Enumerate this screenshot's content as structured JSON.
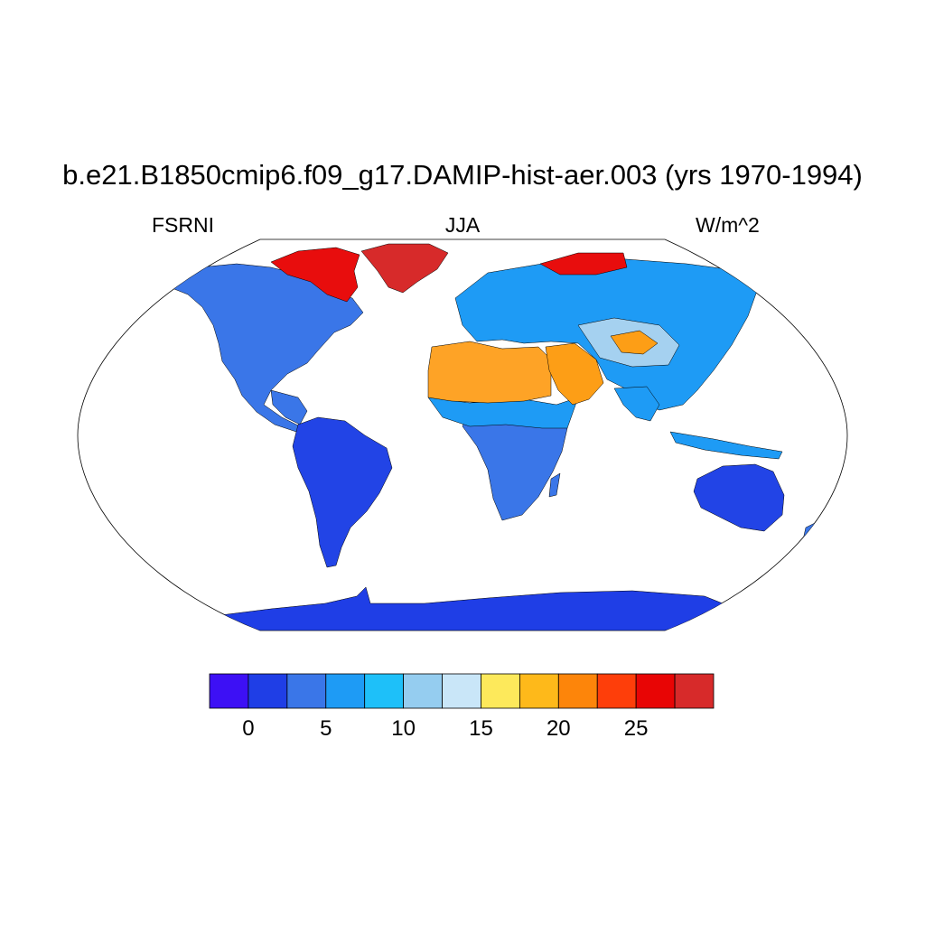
{
  "title": "b.e21.B1850cmip6.f09_g17.DAMIP-hist-aer.003 (yrs 1970-1994)",
  "variable": "FSRNI",
  "season": "JJA",
  "units": "W/m^2",
  "map": {
    "projection": "Robinson",
    "land_colors": {
      "north_america": "#3a76e8",
      "south_america": "#2244e6",
      "africa_south": "#3a76e8",
      "africa_sahel": "#1e9bf5",
      "sahara": "#fea326",
      "arabia": "#fd9e16",
      "eurasia": "#1e9bf5",
      "tibet": "#a5d1f0",
      "australia": "#2244e6",
      "antarctica": "#1f3ee6",
      "greenland": "#d72a2a",
      "arctic_coast": "#e80d0d"
    }
  },
  "colorbar": {
    "levels": [
      -2.5,
      0,
      2.5,
      5,
      7.5,
      10,
      12.5,
      15,
      17.5,
      20,
      22.5,
      25,
      27.5,
      30
    ],
    "colors": [
      "#3d10f5",
      "#1f3ee6",
      "#3a76e8",
      "#1e9bf5",
      "#1ec0f9",
      "#95cdf0",
      "#c9e6f8",
      "#fde95b",
      "#feb91a",
      "#fd850a",
      "#fe3e0a",
      "#e80505",
      "#d72a2a"
    ],
    "tick_labels": [
      "0",
      "5",
      "10",
      "15",
      "20",
      "25"
    ]
  }
}
